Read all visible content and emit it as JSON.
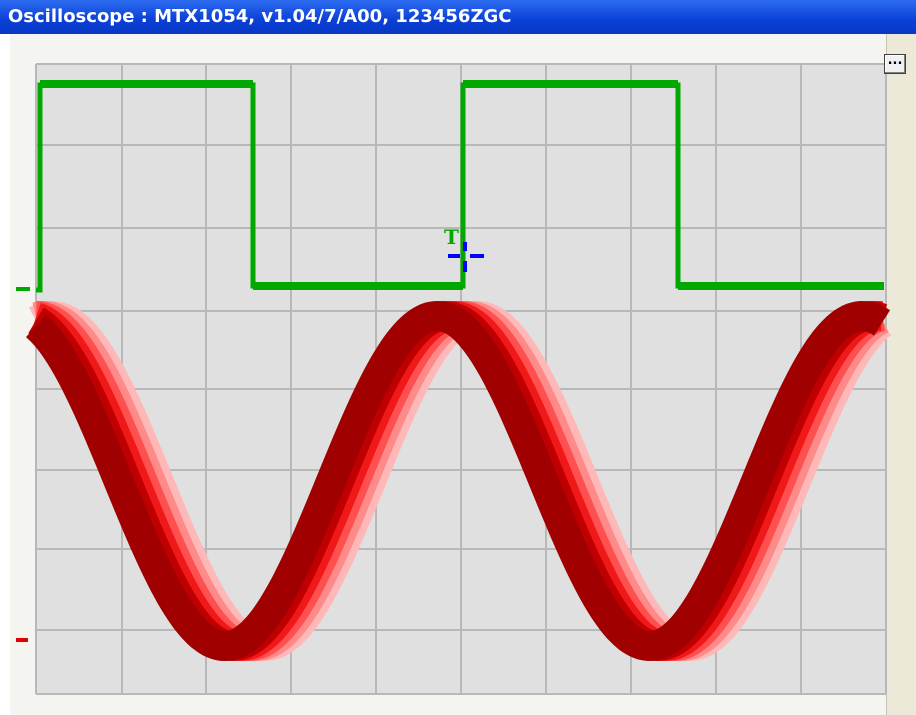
{
  "window": {
    "title": "Oscilloscope : MTX1054, v1.04/7/A00, 123456ZGC"
  },
  "toolbar": {
    "menu_button_label": "...",
    "menu_button_icon": "ellipsis-icon"
  },
  "scope": {
    "background_color": "#e0e0e0",
    "grid_color": "#b8b8b8",
    "channel_1": {
      "color": "#00a800",
      "waveform": "square"
    },
    "channel_2": {
      "color": "#cc0000",
      "waveform": "sine",
      "persistence": true
    },
    "trigger": {
      "label": "T",
      "color": "#00a800",
      "cursor_color": "#0000ff"
    }
  }
}
